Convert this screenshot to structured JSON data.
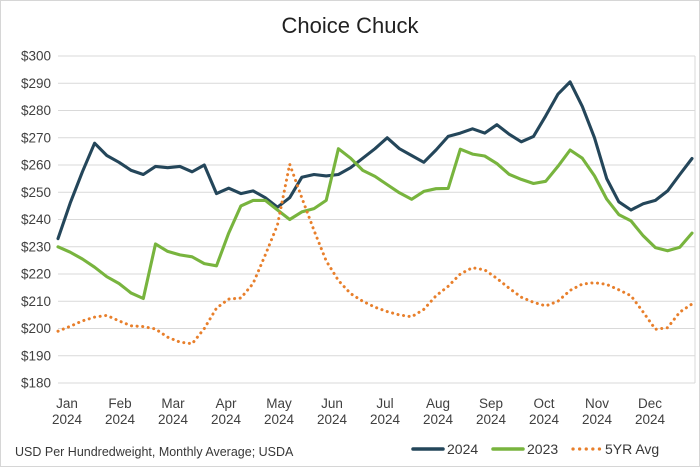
{
  "title": "Choice Chuck",
  "source_note": "USD Per Hundredweight, Monthly Average; USDA",
  "colors": {
    "series_2024": "#24465a",
    "series_2023": "#78b43e",
    "series_5yr": "#e87f2b",
    "gridline": "#d9d9d9",
    "axis_text": "#404040",
    "title_text": "#212121"
  },
  "legend": [
    {
      "label": "2024",
      "color": "#24465a",
      "line_style": "solid"
    },
    {
      "label": "2023",
      "color": "#78b43e",
      "line_style": "solid"
    },
    {
      "label": "5YR Avg",
      "color": "#e87f2b",
      "line_style": "dotted"
    }
  ],
  "chart_data": {
    "type": "line",
    "title": "Choice Chuck",
    "xlabel": "",
    "ylabel": "",
    "frequency": "weekly",
    "grid": true,
    "legend_position": "bottom-right",
    "ylim": [
      180,
      300
    ],
    "y_tick_values": [
      180,
      190,
      200,
      210,
      220,
      230,
      240,
      250,
      260,
      270,
      280,
      290,
      300
    ],
    "y_tick_labels": [
      "$180",
      "$190",
      "$200",
      "$210",
      "$220",
      "$230",
      "$240",
      "$250",
      "$260",
      "$270",
      "$280",
      "$290",
      "$300"
    ],
    "x_months": [
      "Jan",
      "Feb",
      "Mar",
      "Apr",
      "May",
      "Jun",
      "Jul",
      "Aug",
      "Sep",
      "Oct",
      "Nov",
      "Dec"
    ],
    "x_year_label": "2024",
    "series": [
      {
        "name": "2024",
        "color": "#24465a",
        "line_style": "solid",
        "values": [
          233,
          246,
          257.5,
          268,
          263.5,
          261,
          258,
          256.5,
          259.5,
          259,
          259.5,
          257.5,
          260,
          249.5,
          251.5,
          249.5,
          250.5,
          248,
          244.5,
          248,
          255.5,
          256.5,
          256,
          256.5,
          259,
          262.5,
          266,
          270,
          266,
          263.5,
          261,
          265.5,
          270.5,
          271.7,
          273.3,
          271.7,
          274.8,
          271.3,
          268.5,
          270.5,
          278,
          286,
          290.5,
          281.5,
          270,
          255,
          246.5,
          243.5,
          245.8,
          247,
          250.5,
          256.5,
          262.4
        ]
      },
      {
        "name": "2023",
        "color": "#78b43e",
        "line_style": "solid",
        "values": [
          230,
          228,
          225.5,
          222.5,
          219,
          216.5,
          213,
          211,
          231,
          228.3,
          227,
          226.3,
          223.8,
          223,
          235,
          245,
          247,
          247,
          243.5,
          240,
          242.8,
          244,
          247,
          266,
          262.5,
          258,
          255.8,
          252.8,
          249.8,
          247.4,
          250.3,
          251.3,
          251.4,
          265.8,
          264,
          263.3,
          260.5,
          256.6,
          254.7,
          253.2,
          254,
          259.5,
          265.5,
          262.5,
          256,
          247.5,
          241.8,
          239.5,
          234,
          229.7,
          228.5,
          229.8,
          235
        ]
      },
      {
        "name": "5YR Avg",
        "color": "#e87f2b",
        "line_style": "dotted",
        "values": [
          199,
          200.8,
          202.8,
          204.2,
          204.8,
          202.8,
          201,
          200.7,
          199.8,
          196.8,
          195,
          194.4,
          200,
          207.5,
          210.8,
          211.2,
          216.5,
          227,
          238,
          260.3,
          248,
          236,
          224.8,
          217.6,
          212.8,
          210,
          207.8,
          206.2,
          205,
          204.3,
          207,
          212,
          215.5,
          220,
          222.3,
          221.5,
          218.4,
          214.8,
          211.5,
          209.6,
          208.3,
          210,
          214,
          216.3,
          216.8,
          216.2,
          214.2,
          212,
          206,
          199.7,
          200.3,
          206,
          209
        ]
      }
    ]
  }
}
